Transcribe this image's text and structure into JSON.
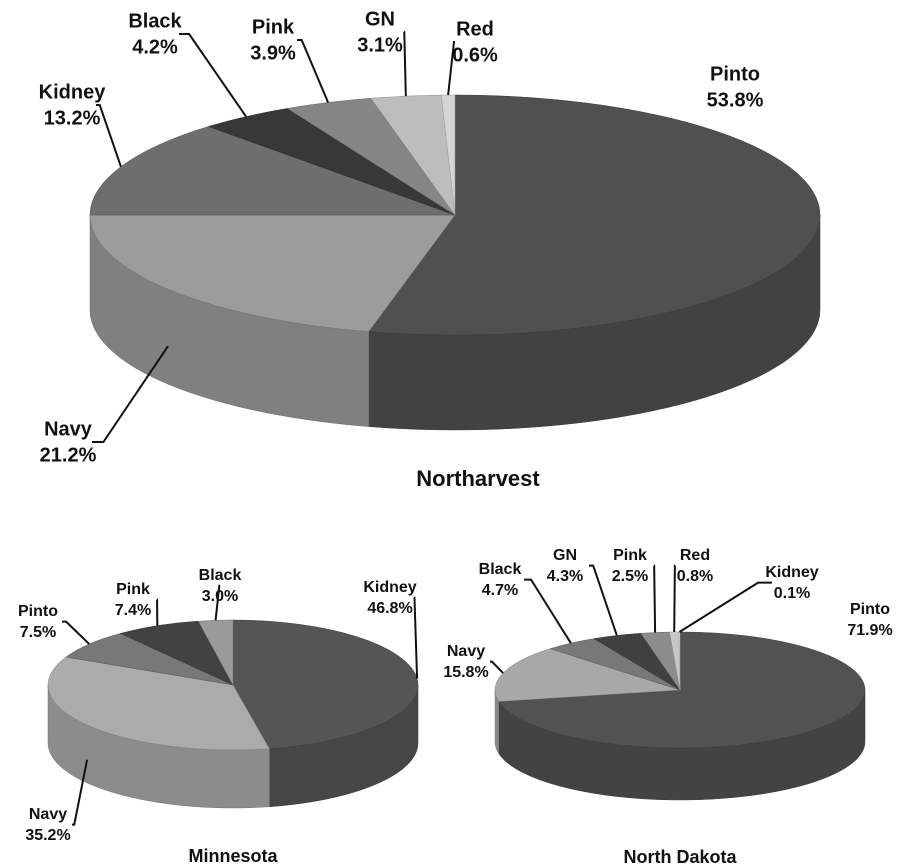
{
  "chart_data": [
    {
      "type": "pie",
      "title": "Northarvest",
      "categories": [
        "Pinto",
        "Navy",
        "Kidney",
        "Black",
        "Pink",
        "GN",
        "Red"
      ],
      "values": [
        53.8,
        21.2,
        13.2,
        4.2,
        3.9,
        3.1,
        0.6
      ],
      "value_labels": [
        "53.8%",
        "21.2%",
        "13.2%",
        "4.2%",
        "3.9%",
        "3.1%",
        "0.6%"
      ],
      "colors": [
        "#505050",
        "#9c9c9c",
        "#6e6e6e",
        "#383838",
        "#858585",
        "#bdbdbd",
        "#d4d4d4"
      ]
    },
    {
      "type": "pie",
      "title": "Minnesota",
      "categories": [
        "Kidney",
        "Navy",
        "Pinto",
        "Pink",
        "Black"
      ],
      "values": [
        46.8,
        35.2,
        7.5,
        7.4,
        3.0
      ],
      "value_labels": [
        "46.8%",
        "35.2%",
        "7.5%",
        "7.4%",
        "3.0%"
      ],
      "colors": [
        "#555555",
        "#ababab",
        "#787878",
        "#424242",
        "#9a9a9a"
      ]
    },
    {
      "type": "pie",
      "title": "North Dakota",
      "categories": [
        "Pinto",
        "Navy",
        "Black",
        "GN",
        "Pink",
        "Red",
        "Kidney"
      ],
      "values": [
        71.9,
        15.8,
        4.7,
        4.3,
        2.5,
        0.8,
        0.1
      ],
      "value_labels": [
        "71.9%",
        "15.8%",
        "4.7%",
        "4.3%",
        "2.5%",
        "0.8%",
        "0.1%"
      ],
      "colors": [
        "#525252",
        "#a8a8a8",
        "#787878",
        "#404040",
        "#8c8c8c",
        "#c8c8c8",
        "#dedede"
      ]
    }
  ]
}
